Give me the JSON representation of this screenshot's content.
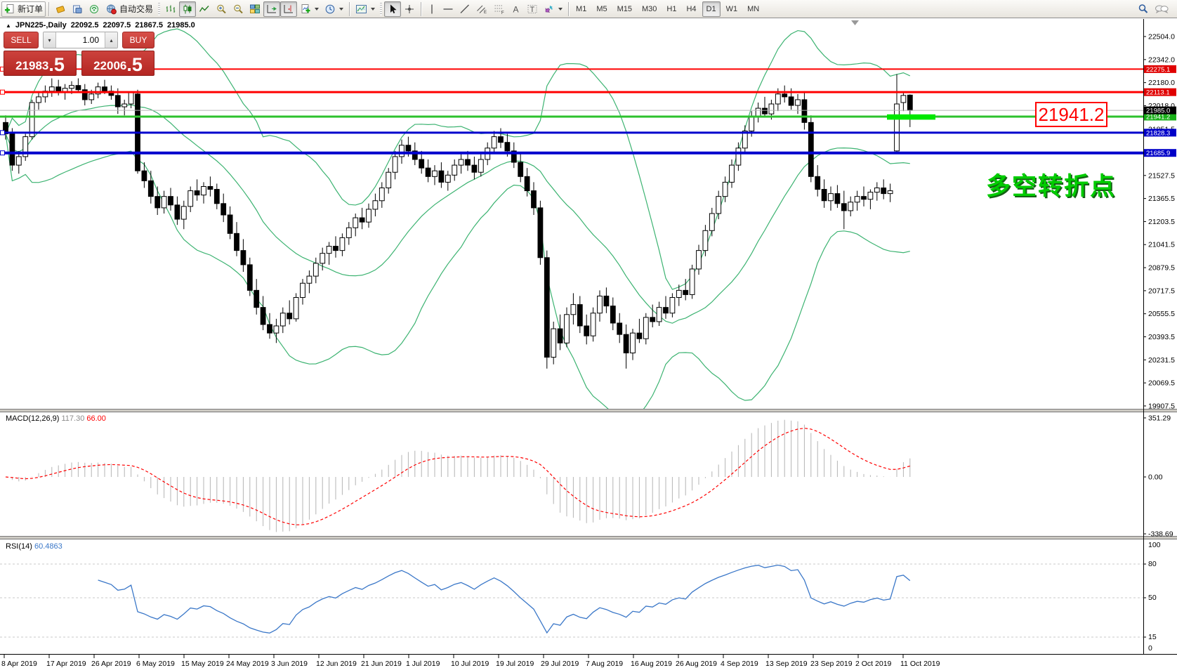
{
  "icons": {
    "collapse": "▲",
    "vol_down": "▾",
    "vol_up": "▴",
    "scroll_marker": "▼"
  },
  "toolbar": {
    "new_order_label": "新订单",
    "autotrade_label": "自动交易",
    "timeframes": [
      "M1",
      "M5",
      "M15",
      "M30",
      "H1",
      "H4",
      "D1",
      "W1",
      "MN"
    ],
    "selected_timeframe": "D1"
  },
  "chart_header": {
    "symbol_period": "JPN225-,Daily",
    "open": "22092.5",
    "high": "22097.5",
    "low": "21867.5",
    "close": "21985.0"
  },
  "trade_panel": {
    "sell_label": "SELL",
    "buy_label": "BUY",
    "volume": "1.00",
    "sell_price_main": "21983",
    "sell_price_pips": ".5",
    "buy_price_main": "22006",
    "buy_price_pips": ".5"
  },
  "annotations": {
    "price_box": "21941.2",
    "note": "多空转折点"
  },
  "chart_data": {
    "type": "candlestick",
    "symbol": "JPN225-",
    "timeframe": "Daily",
    "title": "JPN225-,Daily 22092.5 22097.5 21867.5 21985.0",
    "last_ohlc": {
      "open": 22092.5,
      "high": 22097.5,
      "low": 21867.5,
      "close": 21985.0
    },
    "ylim": [
      19883,
      22613
    ],
    "grid": false,
    "y_axis_ticks": [
      "22504.0",
      "22342.0",
      "22180.0",
      "22018.0",
      "21851.5",
      "21689.5",
      "21527.5",
      "21365.5",
      "21203.5",
      "21041.5",
      "20879.5",
      "20717.5",
      "20555.5",
      "20393.5",
      "20231.5",
      "20069.5",
      "19907.5"
    ],
    "x_axis_dates": [
      "8 Apr 2019",
      "17 Apr 2019",
      "26 Apr 2019",
      "6 May 2019",
      "15 May 2019",
      "24 May 2019",
      "3 Jun 2019",
      "12 Jun 2019",
      "21 Jun 2019",
      "1 Jul 2019",
      "10 Jul 2019",
      "19 Jul 2019",
      "29 Jul 2019",
      "7 Aug 2019",
      "16 Aug 2019",
      "26 Aug 2019",
      "4 Sep 2019",
      "13 Sep 2019",
      "23 Sep 2019",
      "2 Oct 2019",
      "11 Oct 2019"
    ],
    "levels": [
      {
        "price": 22275.1,
        "label": "22275.1",
        "color": "#ff0000",
        "badge": "#e00000",
        "width": 2,
        "handle": true
      },
      {
        "price": 22113.1,
        "label": "22113.1",
        "color": "#ff0000",
        "badge": "#e00000",
        "width": 3,
        "handle": true
      },
      {
        "price": 21941.2,
        "label": "21941.2",
        "color": "#2dc22d",
        "badge": "#18b018",
        "width": 3,
        "handle": false
      },
      {
        "price": 21828.3,
        "label": "21828.3",
        "color": "#0000cd",
        "badge": "#0000c8",
        "width": 3,
        "handle": true
      },
      {
        "price": 21685.9,
        "label": "21685.9",
        "color": "#0000cd",
        "badge": "#0000c8",
        "width": 4,
        "handle": true
      }
    ],
    "current_price": {
      "value": 21985.0,
      "label": "21985.0",
      "line_color": "#b4b4b4",
      "badge": "#000000"
    },
    "trend_highlight": {
      "price": 21941.2,
      "color": "#00e800"
    },
    "bollinger": {
      "period": 20,
      "deviation": 2,
      "color": "#3cb371"
    },
    "candles": [
      [
        21900,
        21950,
        21780,
        21820
      ],
      [
        21820,
        21860,
        21560,
        21600
      ],
      [
        21600,
        21700,
        21540,
        21660
      ],
      [
        21660,
        21820,
        21630,
        21800
      ],
      [
        21800,
        22060,
        21780,
        22040
      ],
      [
        22040,
        22120,
        21990,
        22080
      ],
      [
        22080,
        22160,
        22040,
        22120
      ],
      [
        22120,
        22210,
        22080,
        22150
      ],
      [
        22150,
        22200,
        22090,
        22110
      ],
      [
        22110,
        22170,
        22060,
        22140
      ],
      [
        22140,
        22190,
        22100,
        22160
      ],
      [
        22160,
        22210,
        22110,
        22130
      ],
      [
        22130,
        22170,
        22020,
        22060
      ],
      [
        22060,
        22130,
        22030,
        22100
      ],
      [
        22100,
        22180,
        22070,
        22150
      ],
      [
        22150,
        22200,
        22100,
        22120
      ],
      [
        22120,
        22160,
        22060,
        22090
      ],
      [
        22090,
        22140,
        21960,
        22010
      ],
      [
        22010,
        22060,
        21950,
        22030
      ],
      [
        22030,
        22120,
        22000,
        22110
      ],
      [
        22100,
        22130,
        21540,
        21560
      ],
      [
        21560,
        21620,
        21440,
        21490
      ],
      [
        21490,
        21560,
        21330,
        21380
      ],
      [
        21380,
        21450,
        21250,
        21300
      ],
      [
        21300,
        21420,
        21260,
        21380
      ],
      [
        21380,
        21440,
        21280,
        21320
      ],
      [
        21320,
        21380,
        21180,
        21220
      ],
      [
        21220,
        21350,
        21150,
        21310
      ],
      [
        21310,
        21450,
        21270,
        21420
      ],
      [
        21420,
        21500,
        21350,
        21390
      ],
      [
        21390,
        21480,
        21330,
        21450
      ],
      [
        21450,
        21520,
        21380,
        21430
      ],
      [
        21430,
        21470,
        21290,
        21330
      ],
      [
        21330,
        21400,
        21200,
        21250
      ],
      [
        21250,
        21310,
        21080,
        21120
      ],
      [
        21120,
        21200,
        20960,
        21000
      ],
      [
        21000,
        21080,
        20850,
        20900
      ],
      [
        20900,
        20950,
        20680,
        20720
      ],
      [
        20720,
        20800,
        20550,
        20600
      ],
      [
        20600,
        20680,
        20440,
        20480
      ],
      [
        20480,
        20560,
        20380,
        20420
      ],
      [
        20420,
        20520,
        20350,
        20470
      ],
      [
        20470,
        20600,
        20420,
        20560
      ],
      [
        20560,
        20650,
        20480,
        20520
      ],
      [
        20520,
        20700,
        20500,
        20670
      ],
      [
        20670,
        20800,
        20620,
        20770
      ],
      [
        20770,
        20860,
        20700,
        20820
      ],
      [
        20820,
        20950,
        20770,
        20910
      ],
      [
        20910,
        21020,
        20860,
        20980
      ],
      [
        20980,
        21060,
        20900,
        21030
      ],
      [
        21030,
        21100,
        20950,
        21000
      ],
      [
        21000,
        21120,
        20960,
        21090
      ],
      [
        21090,
        21200,
        21040,
        21160
      ],
      [
        21160,
        21260,
        21100,
        21230
      ],
      [
        21230,
        21300,
        21150,
        21200
      ],
      [
        21200,
        21330,
        21160,
        21290
      ],
      [
        21290,
        21400,
        21240,
        21350
      ],
      [
        21350,
        21480,
        21300,
        21440
      ],
      [
        21440,
        21580,
        21400,
        21550
      ],
      [
        21550,
        21700,
        21500,
        21660
      ],
      [
        21660,
        21780,
        21610,
        21740
      ],
      [
        21740,
        21800,
        21660,
        21700
      ],
      [
        21700,
        21760,
        21600,
        21640
      ],
      [
        21640,
        21700,
        21540,
        21580
      ],
      [
        21580,
        21640,
        21480,
        21520
      ],
      [
        21520,
        21600,
        21460,
        21560
      ],
      [
        21560,
        21620,
        21440,
        21480
      ],
      [
        21480,
        21560,
        21420,
        21530
      ],
      [
        21530,
        21640,
        21490,
        21600
      ],
      [
        21600,
        21680,
        21540,
        21640
      ],
      [
        21640,
        21700,
        21560,
        21600
      ],
      [
        21600,
        21660,
        21500,
        21550
      ],
      [
        21550,
        21680,
        21520,
        21640
      ],
      [
        21640,
        21760,
        21600,
        21720
      ],
      [
        21720,
        21840,
        21680,
        21800
      ],
      [
        21800,
        21860,
        21720,
        21760
      ],
      [
        21760,
        21820,
        21660,
        21700
      ],
      [
        21700,
        21760,
        21580,
        21620
      ],
      [
        21620,
        21680,
        21480,
        21520
      ],
      [
        21520,
        21580,
        21380,
        21420
      ],
      [
        21420,
        21480,
        21250,
        21300
      ],
      [
        21300,
        21350,
        20900,
        20950
      ],
      [
        20950,
        21000,
        20170,
        20250
      ],
      [
        20250,
        20500,
        20200,
        20450
      ],
      [
        20450,
        20550,
        20300,
        20350
      ],
      [
        20350,
        20600,
        20320,
        20550
      ],
      [
        20550,
        20700,
        20480,
        20620
      ],
      [
        20620,
        20680,
        20420,
        20470
      ],
      [
        20470,
        20550,
        20340,
        20400
      ],
      [
        20400,
        20600,
        20360,
        20560
      ],
      [
        20560,
        20720,
        20500,
        20680
      ],
      [
        20680,
        20740,
        20560,
        20610
      ],
      [
        20610,
        20670,
        20440,
        20490
      ],
      [
        20490,
        20560,
        20350,
        20410
      ],
      [
        20410,
        20480,
        20170,
        20280
      ],
      [
        20280,
        20450,
        20230,
        20420
      ],
      [
        20420,
        20520,
        20350,
        20380
      ],
      [
        20380,
        20560,
        20340,
        20530
      ],
      [
        20530,
        20620,
        20460,
        20500
      ],
      [
        20500,
        20640,
        20470,
        20600
      ],
      [
        20600,
        20680,
        20520,
        20560
      ],
      [
        20560,
        20700,
        20530,
        20670
      ],
      [
        20670,
        20760,
        20610,
        20720
      ],
      [
        20720,
        20800,
        20650,
        20690
      ],
      [
        20690,
        20900,
        20660,
        20870
      ],
      [
        20870,
        21040,
        20830,
        21000
      ],
      [
        21000,
        21180,
        20960,
        21140
      ],
      [
        21140,
        21300,
        21100,
        21260
      ],
      [
        21260,
        21420,
        21220,
        21380
      ],
      [
        21380,
        21520,
        21340,
        21480
      ],
      [
        21480,
        21640,
        21440,
        21600
      ],
      [
        21600,
        21760,
        21560,
        21720
      ],
      [
        21720,
        21880,
        21680,
        21840
      ],
      [
        21840,
        21980,
        21800,
        21940
      ],
      [
        21940,
        22040,
        21900,
        22000
      ],
      [
        22000,
        22080,
        21940,
        21960
      ],
      [
        21960,
        22060,
        21920,
        22030
      ],
      [
        22030,
        22140,
        21980,
        22100
      ],
      [
        22100,
        22160,
        22040,
        22080
      ],
      [
        22080,
        22140,
        21990,
        22020
      ],
      [
        22020,
        22100,
        21960,
        22060
      ],
      [
        22060,
        22120,
        21850,
        21900
      ],
      [
        21900,
        21950,
        21480,
        21520
      ],
      [
        21520,
        21600,
        21380,
        21430
      ],
      [
        21430,
        21500,
        21300,
        21350
      ],
      [
        21350,
        21450,
        21280,
        21400
      ],
      [
        21400,
        21460,
        21300,
        21330
      ],
      [
        21330,
        21420,
        21150,
        21280
      ],
      [
        21280,
        21380,
        21240,
        21340
      ],
      [
        21340,
        21420,
        21280,
        21380
      ],
      [
        21380,
        21450,
        21310,
        21360
      ],
      [
        21360,
        21430,
        21290,
        21410
      ],
      [
        21410,
        21480,
        21350,
        21440
      ],
      [
        21440,
        21500,
        21360,
        21400
      ],
      [
        21400,
        21470,
        21340,
        21420
      ],
      [
        21700,
        22240,
        21680,
        22030
      ],
      [
        22040,
        22110,
        21980,
        22090
      ],
      [
        22092.5,
        22097.5,
        21867.5,
        21985.0
      ]
    ],
    "indicators": [
      {
        "name": "MACD",
        "label": "MACD(12,26,9)",
        "main_value": "117.30",
        "signal_value": "66.00",
        "axis_labels": [
          "351.29",
          "0.00",
          "-338.69"
        ],
        "hist_color": "#b4b4b4",
        "signal_color": "#ff0000"
      },
      {
        "name": "RSI",
        "label": "RSI(14)",
        "value": "60.4863",
        "levels": [
          80,
          50,
          15
        ],
        "axis_labels": [
          "100",
          "80",
          "50",
          "15",
          "0"
        ],
        "line_color": "#3a77c8",
        "level_color": "#c8c8c8"
      }
    ]
  }
}
